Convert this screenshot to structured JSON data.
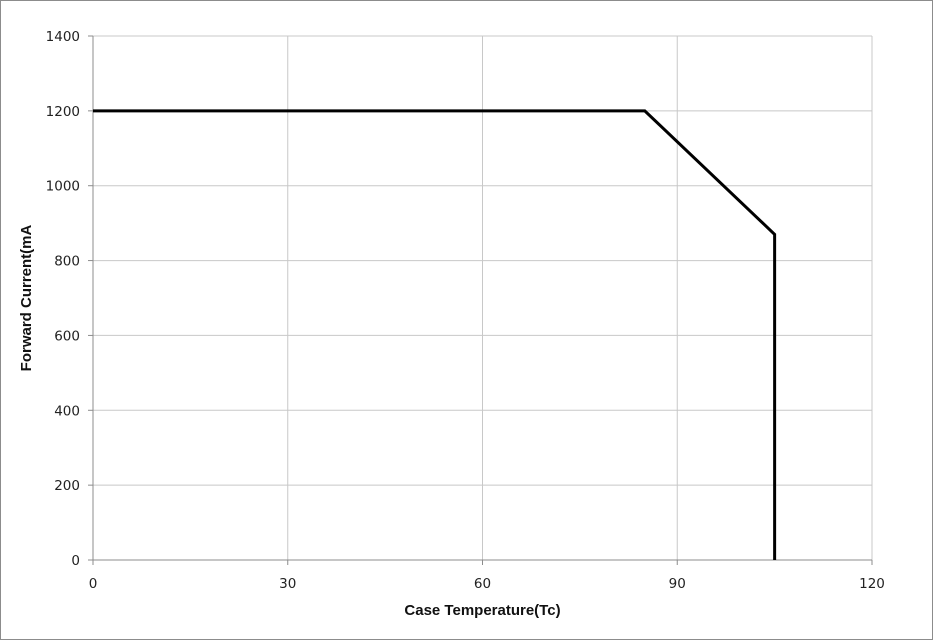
{
  "chart_data": {
    "type": "line",
    "title": "",
    "xlabel": "Case Temperature(Tc)",
    "ylabel": "Forward Current(mA",
    "xlim": [
      0,
      120
    ],
    "ylim": [
      0,
      1400
    ],
    "x_ticks": [
      0,
      30,
      60,
      90,
      120
    ],
    "y_ticks": [
      0,
      200,
      400,
      600,
      800,
      1000,
      1200,
      1400
    ],
    "x_tick_labels": [
      "0",
      "30",
      "60",
      "90",
      "120"
    ],
    "y_tick_labels": [
      "0",
      "200",
      "400",
      "600",
      "800",
      "1000",
      "1200",
      "1400"
    ],
    "grid": true,
    "legend": "none",
    "series": [
      {
        "x": [
          0,
          85,
          105,
          105
        ],
        "y": [
          1200,
          1200,
          870,
          0
        ],
        "color": "#000000"
      }
    ]
  }
}
